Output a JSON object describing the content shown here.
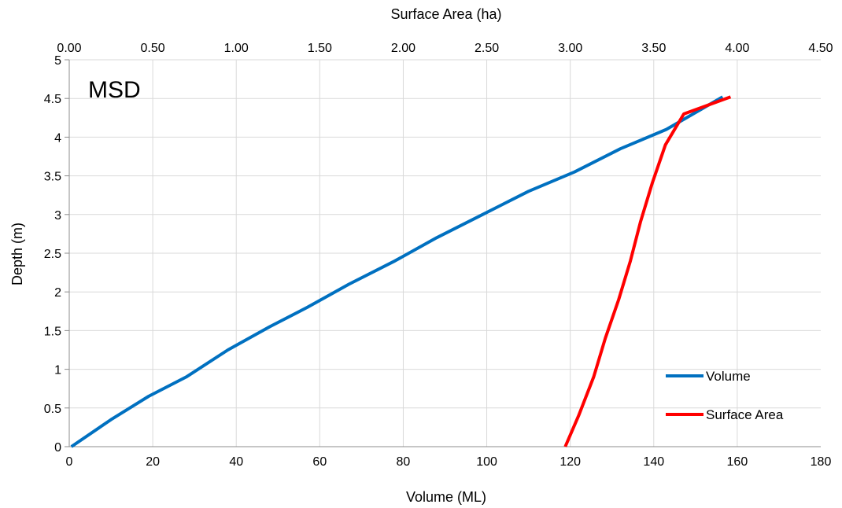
{
  "chart_data": {
    "type": "line",
    "annotation": "MSD",
    "xlabel": "Volume (ML)",
    "x2label": "Surface Area (ha)",
    "ylabel": "Depth (m)",
    "xlim": [
      0,
      180
    ],
    "x2lim": [
      0,
      4.5
    ],
    "ylim": [
      0,
      5
    ],
    "xticks": [
      "0",
      "20",
      "40",
      "60",
      "80",
      "100",
      "120",
      "140",
      "160",
      "180"
    ],
    "x2ticks": [
      "0.00",
      "0.50",
      "1.00",
      "1.50",
      "2.00",
      "2.50",
      "3.00",
      "3.50",
      "4.00",
      "4.50"
    ],
    "yticks": [
      "0",
      "0.5",
      "1",
      "1.5",
      "2",
      "2.5",
      "3",
      "3.5",
      "4",
      "4.5",
      "5"
    ],
    "grid": true,
    "legend_position": "bottom-right",
    "series": [
      {
        "name": "Volume",
        "axis": "bottom",
        "color": "#0070C0",
        "points": [
          [
            0.5,
            0
          ],
          [
            10,
            0.35
          ],
          [
            19,
            0.65
          ],
          [
            28,
            0.9
          ],
          [
            38,
            1.25
          ],
          [
            48,
            1.55
          ],
          [
            57,
            1.8
          ],
          [
            67,
            2.1
          ],
          [
            78,
            2.4
          ],
          [
            88,
            2.7
          ],
          [
            99,
            3.0
          ],
          [
            110,
            3.3
          ],
          [
            121,
            3.55
          ],
          [
            132,
            3.85
          ],
          [
            143,
            4.1
          ],
          [
            156.5,
            4.52
          ]
        ]
      },
      {
        "name": "Surface Area",
        "axis": "top",
        "color": "#FF0000",
        "points": [
          [
            2.97,
            0
          ],
          [
            3.05,
            0.4
          ],
          [
            3.14,
            0.9
          ],
          [
            3.21,
            1.4
          ],
          [
            3.29,
            1.9
          ],
          [
            3.36,
            2.4
          ],
          [
            3.42,
            2.9
          ],
          [
            3.49,
            3.4
          ],
          [
            3.57,
            3.9
          ],
          [
            3.68,
            4.3
          ],
          [
            3.96,
            4.52
          ]
        ]
      }
    ]
  }
}
